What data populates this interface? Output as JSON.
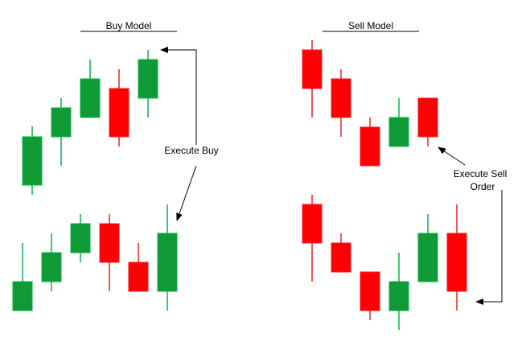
{
  "titles": {
    "buy": "Buy Model",
    "sell": "Sell Model"
  },
  "annotations": {
    "execute_buy": "Execute Buy",
    "execute_sell_line1": "Execute Sell",
    "execute_sell_line2": "Order"
  },
  "colors": {
    "bull_fill": "#109a36",
    "bull_edge": "#06b34a",
    "bear_fill": "#fb0103",
    "bear_edge": "#f02020",
    "arrow": "#000000",
    "text": "#000000"
  },
  "groups": [
    {
      "id": "buy-top",
      "candles": [
        {
          "dir": "bull"
        },
        {
          "dir": "bull"
        },
        {
          "dir": "bull"
        },
        {
          "dir": "bear"
        },
        {
          "dir": "bull"
        }
      ]
    },
    {
      "id": "buy-bottom",
      "candles": [
        {
          "dir": "bull"
        },
        {
          "dir": "bull"
        },
        {
          "dir": "bull"
        },
        {
          "dir": "bear"
        },
        {
          "dir": "bear"
        },
        {
          "dir": "bull"
        }
      ]
    },
    {
      "id": "sell-top",
      "candles": [
        {
          "dir": "bear"
        },
        {
          "dir": "bear"
        },
        {
          "dir": "bear"
        },
        {
          "dir": "bull"
        },
        {
          "dir": "bear"
        }
      ]
    },
    {
      "id": "sell-bottom",
      "candles": [
        {
          "dir": "bear"
        },
        {
          "dir": "bear"
        },
        {
          "dir": "bear"
        },
        {
          "dir": "bull"
        },
        {
          "dir": "bull"
        },
        {
          "dir": "bear"
        }
      ]
    }
  ]
}
